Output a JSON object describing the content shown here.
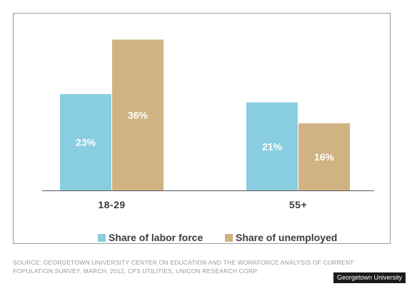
{
  "chart_data": {
    "type": "bar",
    "categories": [
      "18-29",
      "55+"
    ],
    "series": [
      {
        "name": "Share of labor force",
        "values": [
          23,
          21
        ],
        "labels": [
          "23%",
          "21%"
        ],
        "color": "#89cde0"
      },
      {
        "name": "Share of unemployed",
        "values": [
          36,
          16
        ],
        "labels": [
          "36%",
          "16%"
        ],
        "color": "#cfb383"
      }
    ],
    "ylim": [
      0,
      40
    ],
    "grid": false,
    "legend_position": "bottom",
    "title": "",
    "xlabel": "",
    "ylabel": ""
  },
  "source_text": "SOURCE: GEORGETOWN UNIVERSITY CENTER ON EDUCATION AND THE WORKFORCE ANALYSIS OF CURRENT POPULATION SURVEY, MARCH, 2012, CPS UTILITIES, UNICON RESEARCH CORP.",
  "credit_text": "Georgetown University",
  "colors": {
    "axis": "#5a5a5a",
    "frame": "#9a9a9a",
    "text": "#3c3c3c"
  }
}
